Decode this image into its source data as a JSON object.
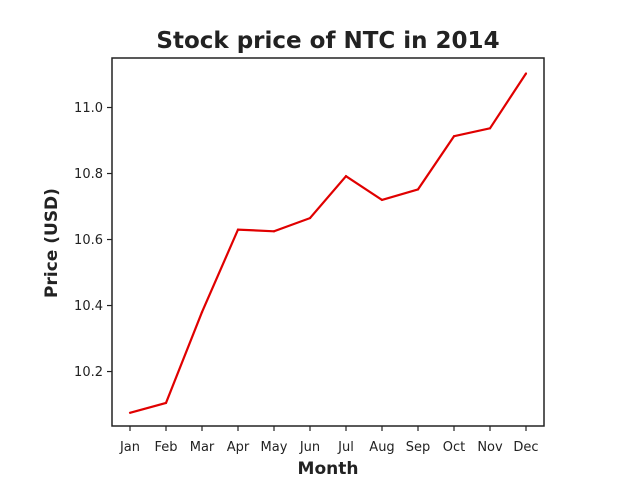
{
  "chart_data": {
    "type": "line",
    "title": "Stock price of NTC in 2014",
    "xlabel": "Month",
    "ylabel": "Price (USD)",
    "categories": [
      "Jan",
      "Feb",
      "Mar",
      "Apr",
      "May",
      "Jun",
      "Jul",
      "Aug",
      "Sep",
      "Oct",
      "Nov",
      "Dec"
    ],
    "series": [
      {
        "values": [
          10.075,
          10.105,
          10.38,
          10.63,
          10.625,
          10.665,
          10.792,
          10.72,
          10.752,
          10.913,
          10.937,
          11.103
        ],
        "color": "#e00000"
      }
    ],
    "yticks": [
      10.2,
      10.4,
      10.6,
      10.8,
      11.0
    ],
    "ytick_labels": [
      "10.2",
      "10.4",
      "10.6",
      "10.8",
      "11.0"
    ],
    "ylim": [
      10.035,
      11.15
    ],
    "grid": false,
    "legend": "none"
  }
}
